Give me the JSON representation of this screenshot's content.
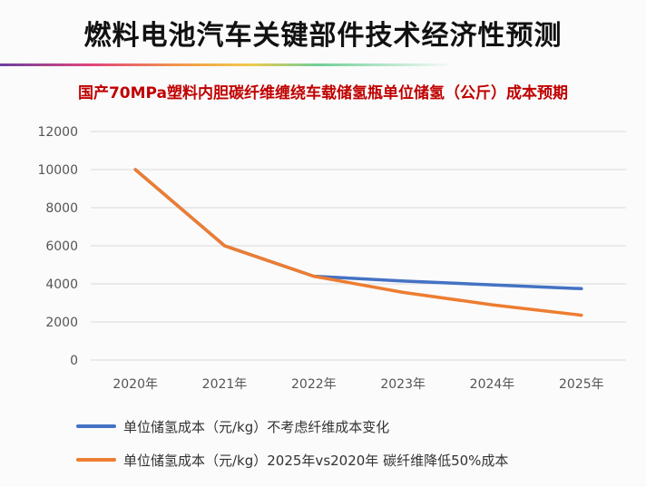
{
  "title": "燃料电池汽车关键部件技术经济性预测",
  "subtitle": "国产70MPa塑料内胆碳纤维缠绕车载储氢瓶单位储氢（公斤）成本预期",
  "colors": {
    "title": "#111111",
    "subtitle": "#c00000",
    "blue_series": "#4472c4",
    "orange_series": "#ed7d31",
    "grid": "#d9d9d9"
  },
  "chart_data": {
    "type": "line",
    "categories": [
      "2020年",
      "2021年",
      "2022年",
      "2023年",
      "2024年",
      "2025年"
    ],
    "yticks": [
      "0",
      "2000",
      "4000",
      "6000",
      "8000",
      "10000",
      "12000"
    ],
    "ylim": [
      0,
      12000
    ],
    "grid": true,
    "legend_position": "bottom",
    "series": [
      {
        "name": "单位储氢成本（元/kg）不考虑纤维成本变化",
        "color": "#4472c4",
        "values": [
          10000,
          6000,
          4400,
          4150,
          3950,
          3750
        ]
      },
      {
        "name": "单位储氢成本（元/kg）2025年vs2020年 碳纤维降低50%成本",
        "color": "#ed7d31",
        "values": [
          10000,
          6000,
          4400,
          3550,
          2900,
          2350
        ]
      }
    ]
  }
}
